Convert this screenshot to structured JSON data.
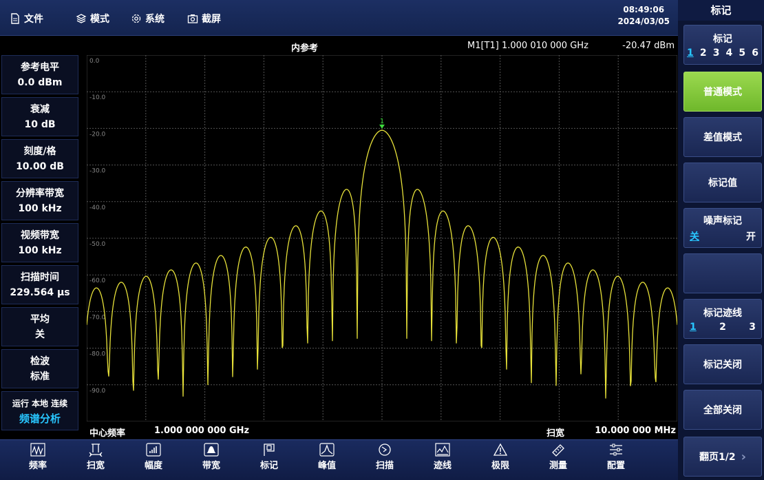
{
  "menu": {
    "file": "文件",
    "mode": "模式",
    "system": "系统",
    "screenshot": "截屏"
  },
  "clock": {
    "time": "08:49:06",
    "date": "2024/03/05"
  },
  "graph": {
    "title": "内参考",
    "marker_readout": "M1[T1] 1.000 010 000 GHz",
    "marker_level": "-20.47 dBm",
    "marker_label": "1",
    "y_ticks": [
      "0.0",
      "-10.0",
      "-20.0",
      "-30.0",
      "-40.0",
      "-50.0",
      "-60.0",
      "-70.0",
      "-80.0",
      "-90.0"
    ],
    "center_label": "中心频率",
    "center_value": "1.000 000 000 GHz",
    "span_label": "扫宽",
    "span_value": "10.000 000 MHz",
    "trace_color": "#e8e23a"
  },
  "left_panel": [
    {
      "label": "参考电平",
      "value": "0.0 dBm"
    },
    {
      "label": "衰减",
      "value": "10 dB"
    },
    {
      "label": "刻度/格",
      "value": "10.00 dB"
    },
    {
      "label": "分辨率带宽",
      "value": "100 kHz"
    },
    {
      "label": "视频带宽",
      "value": "100 kHz"
    },
    {
      "label": "扫描时间",
      "value": "229.564 µs"
    },
    {
      "label": "平均",
      "value": "关"
    },
    {
      "label": "检波",
      "value": "标准"
    }
  ],
  "status": {
    "line": "运行 本地 连续",
    "mode": "频谱分析"
  },
  "right_panel": {
    "title": "标记",
    "marker_select": {
      "label": "标记",
      "options": [
        "1",
        "2",
        "3",
        "4",
        "5",
        "6"
      ],
      "selected": "1"
    },
    "normal_mode": "普通模式",
    "delta_mode": "差值模式",
    "marker_value": "标记值",
    "noise_marker": {
      "label": "噪声标记",
      "off": "关",
      "on": "开"
    },
    "marker_trace": {
      "label": "标记迹线",
      "options": [
        "1",
        "2",
        "3"
      ],
      "selected": "1"
    },
    "marker_off": "标记关闭",
    "all_off": "全部关闭",
    "page": "翻页1/2"
  },
  "toolbar": [
    {
      "label": "频率",
      "icon": "frequency-icon"
    },
    {
      "label": "扫宽",
      "icon": "span-icon"
    },
    {
      "label": "幅度",
      "icon": "amplitude-icon"
    },
    {
      "label": "带宽",
      "icon": "bandwidth-icon"
    },
    {
      "label": "标记",
      "icon": "marker-icon"
    },
    {
      "label": "峰值",
      "icon": "peak-icon"
    },
    {
      "label": "扫描",
      "icon": "sweep-icon"
    },
    {
      "label": "迹线",
      "icon": "trace-icon"
    },
    {
      "label": "极限",
      "icon": "limit-icon"
    },
    {
      "label": "测量",
      "icon": "measure-icon"
    },
    {
      "label": "配置",
      "icon": "config-icon"
    }
  ],
  "colors": {
    "active_key": "#86c93d",
    "accent_blue": "#28c6ff",
    "marker_green": "#3ddc3d"
  }
}
